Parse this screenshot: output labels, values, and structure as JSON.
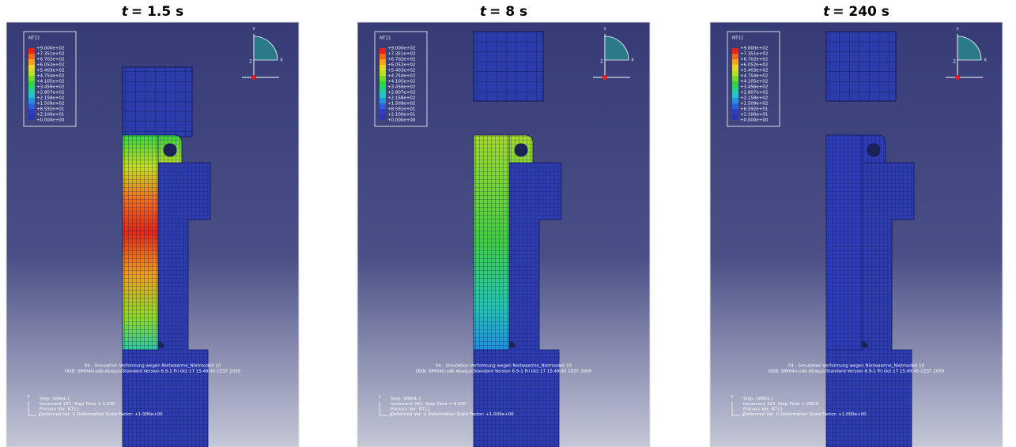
{
  "legend_colors": [
    "#e8231c",
    "#f06a16",
    "#f4a31a",
    "#e9d61e",
    "#b8e322",
    "#6fdc28",
    "#2fd640",
    "#22d18a",
    "#20c6c8",
    "#2393e0",
    "#2a60da",
    "#2e3dc8",
    "#3034b0"
  ],
  "panels": [
    {
      "variable": "t",
      "title": "= 1.5 s",
      "legend_title": "NT11",
      "legend": [
        "+9.000e+02",
        "+7.351e+02",
        "+6.702e+02",
        "+6.052e+02",
        "+5.403e+02",
        "+4.754e+02",
        "+4.105e+02",
        "+3.456e+02",
        "+2.807e+02",
        "+2.158e+02",
        "+1.509e+02",
        "+8.592e+01",
        "+2.100e+01",
        "+0.000e+00"
      ],
      "triad": [
        "Y",
        "Z",
        "X"
      ],
      "caption": [
        "04 - Simulation Verformung wegen Nietwaerme_Nietmodell 10",
        "ODB: SIM04U.odb    Abaqus/Standard Version 6.9-1    Fri Oct 17 15:49:45 CEST 2009"
      ],
      "step": [
        "Step: SIM04-1",
        "Increment    237: Step Time =    1.500",
        "Primary Var: NT11",
        "Deformed Var: U   Deformation Scale Factor: +1.000e+00"
      ],
      "small_triad": [
        "Y",
        "X"
      ]
    },
    {
      "variable": "t",
      "title": "= 8 s",
      "legend_title": "NT11",
      "legend": [
        "+9.000e+02",
        "+7.351e+02",
        "+6.702e+02",
        "+6.052e+02",
        "+5.403e+02",
        "+4.754e+02",
        "+4.105e+02",
        "+3.456e+02",
        "+2.807e+02",
        "+2.158e+02",
        "+1.509e+02",
        "+8.592e+01",
        "+2.100e+01",
        "+0.000e+00"
      ],
      "triad": [
        "Y",
        "Z",
        "X"
      ],
      "caption": [
        "04 - Simulation Verformung wegen Nietwaerme_Nietmodell 10",
        "ODB: SIM04U.odb    Abaqus/Standard Version 6.9-1    Fri Oct 17 15:49:45 CEST 2009"
      ],
      "step": [
        "Step: SIM04-1",
        "Increment    262: Step Time =    8.000",
        "Primary Var: NT11",
        "Deformed Var: U   Deformation Scale Factor: +1.000e+00"
      ],
      "small_triad": [
        "Y",
        "X"
      ]
    },
    {
      "variable": "t",
      "title": "= 240 s",
      "legend_title": "NT11",
      "legend": [
        "+9.000e+02",
        "+7.351e+02",
        "+6.702e+02",
        "+6.052e+02",
        "+5.403e+02",
        "+4.754e+02",
        "+4.105e+02",
        "+3.456e+02",
        "+2.807e+02",
        "+2.158e+02",
        "+1.509e+02",
        "+8.592e+01",
        "+2.100e+01",
        "+0.000e+00"
      ],
      "triad": [
        "Y",
        "Z",
        "X"
      ],
      "caption": [
        "04 - Simulation Verformung wegen Nietwaerme_Nietmodell 10",
        "ODB: SIM04U.odb    Abaqus/Standard Version 6.9-1    Fri Oct 17 15:49:45 CEST 2009"
      ],
      "step": [
        "Step: SIM04-1",
        "Increment    323: Step Time =    240.0",
        "Primary Var: NT11",
        "Deformed Var: U   Deformation Scale Factor: +1.000e+00"
      ],
      "small_triad": [
        "Y",
        "X"
      ]
    }
  ]
}
